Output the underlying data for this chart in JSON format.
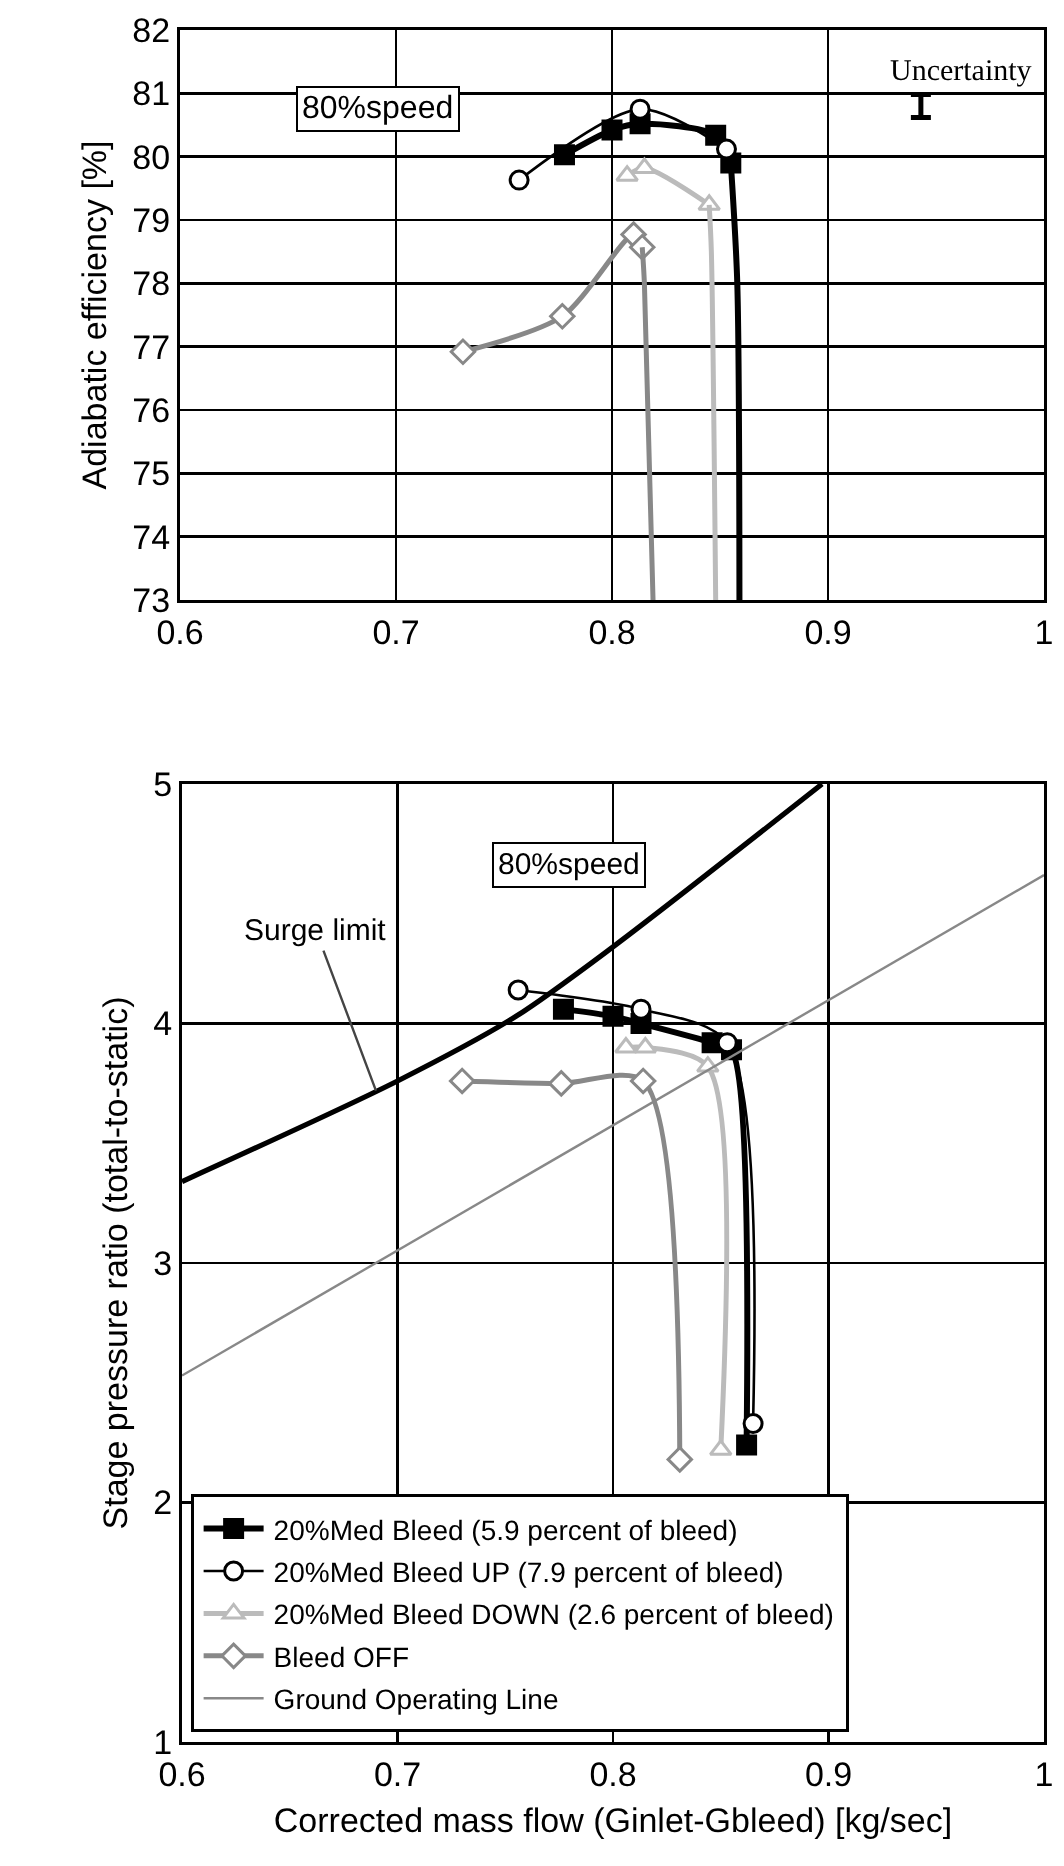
{
  "chart_data": [
    {
      "type": "line",
      "ylabel": "Adiabatic efficiency [%]",
      "annotations": [
        "80%speed",
        "Uncertainty"
      ],
      "xlim": [
        0.6,
        1
      ],
      "ylim": [
        73,
        82
      ],
      "xticks": [
        0.6,
        0.7,
        0.8,
        0.9,
        1
      ],
      "yticks": [
        73,
        74,
        75,
        76,
        77,
        78,
        79,
        80,
        81,
        82
      ],
      "grid": true,
      "legend": false,
      "line_style": "solid",
      "series": [
        {
          "color": "#000000",
          "marker": "square",
          "x": [
            0.778,
            0.8,
            0.813,
            0.848,
            0.855
          ],
          "values": [
            80.03,
            80.42,
            80.52,
            80.34,
            79.9
          ]
        },
        {
          "color": "#000000",
          "marker": "none",
          "x": [
            0.855,
            0.858,
            0.859
          ],
          "values": [
            79.9,
            78,
            73
          ]
        },
        {
          "color": "#000000",
          "marker": "circle",
          "x": [
            0.757,
            0.813,
            0.853
          ],
          "values": [
            79.63,
            80.75,
            80.12
          ]
        },
        {
          "color": "#bbbbbb",
          "marker": "triangle",
          "x": [
            0.807,
            0.815,
            0.845
          ],
          "values": [
            79.7,
            79.82,
            79.24
          ]
        },
        {
          "color": "#bbbbbb",
          "marker": "none",
          "x": [
            0.845,
            0.846,
            0.848
          ],
          "values": [
            79.24,
            78.5,
            73
          ]
        },
        {
          "color": "#888888",
          "marker": "diamond",
          "x": [
            0.731,
            0.777,
            0.81,
            0.814
          ],
          "values": [
            76.92,
            77.48,
            78.77,
            78.57
          ]
        },
        {
          "color": "#888888",
          "marker": "none",
          "x": [
            0.814,
            0.815,
            0.819
          ],
          "values": [
            78.57,
            78,
            73
          ]
        },
        {
          "type": "scatter",
          "color": "#000000",
          "x": [
            0.943
          ],
          "values": [
            80.8
          ],
          "errors": [
            0.18
          ]
        }
      ]
    },
    {
      "type": "line",
      "xlabel": "Corrected mass flow (Ginlet-Gbleed) [kg/sec]",
      "ylabel": "Stage pressure ratio (total-to-static)",
      "annotations": [
        "80%speed",
        {
          "text": "Surge limit",
          "x": 0.69,
          "y": 3.72
        }
      ],
      "xlim": [
        0.6,
        1
      ],
      "ylim": [
        1,
        5
      ],
      "xticks": [
        0.6,
        0.7,
        0.8,
        0.9,
        1
      ],
      "yticks": [
        1,
        2,
        3,
        4,
        5
      ],
      "grid": true,
      "legend": "bottom left",
      "line_style": "solid",
      "series": [
        {
          "name": "20%Med Bleed (5.9 percent of bleed)",
          "color": "#000000",
          "marker": "square",
          "x": [
            0.777,
            0.8,
            0.813,
            0.846,
            0.855,
            0.862
          ],
          "values": [
            4.06,
            4.03,
            4.0,
            3.92,
            3.89,
            2.24
          ]
        },
        {
          "name": "20%Med Bleed UP (7.9 percent of bleed)",
          "color": "#000000",
          "marker": "circle",
          "x": [
            0.756,
            0.813,
            0.853,
            0.865
          ],
          "values": [
            4.14,
            4.06,
            3.92,
            2.33
          ]
        },
        {
          "name": "20%Med Bleed DOWN (2.6 percent of bleed)",
          "color": "#bbbbbb",
          "marker": "triangle",
          "x": [
            0.806,
            0.815,
            0.844,
            0.85
          ],
          "values": [
            3.9,
            3.9,
            3.82,
            2.22
          ]
        },
        {
          "name": "Bleed OFF",
          "color": "#888888",
          "marker": "diamond",
          "x": [
            0.73,
            0.776,
            0.814,
            0.831
          ],
          "values": [
            3.76,
            3.75,
            3.76,
            2.18
          ]
        },
        {
          "name": "Ground Operating Line",
          "color": "#888888",
          "marker": "none",
          "x": [
            0.6,
            1
          ],
          "values": [
            2.53,
            4.62
          ]
        },
        {
          "color": "#000000",
          "marker": "none",
          "x": [
            0.6,
            0.7,
            0.755,
            0.8,
            0.897
          ],
          "values": [
            3.34,
            3.76,
            4.03,
            4.32,
            5.0
          ]
        }
      ]
    }
  ]
}
